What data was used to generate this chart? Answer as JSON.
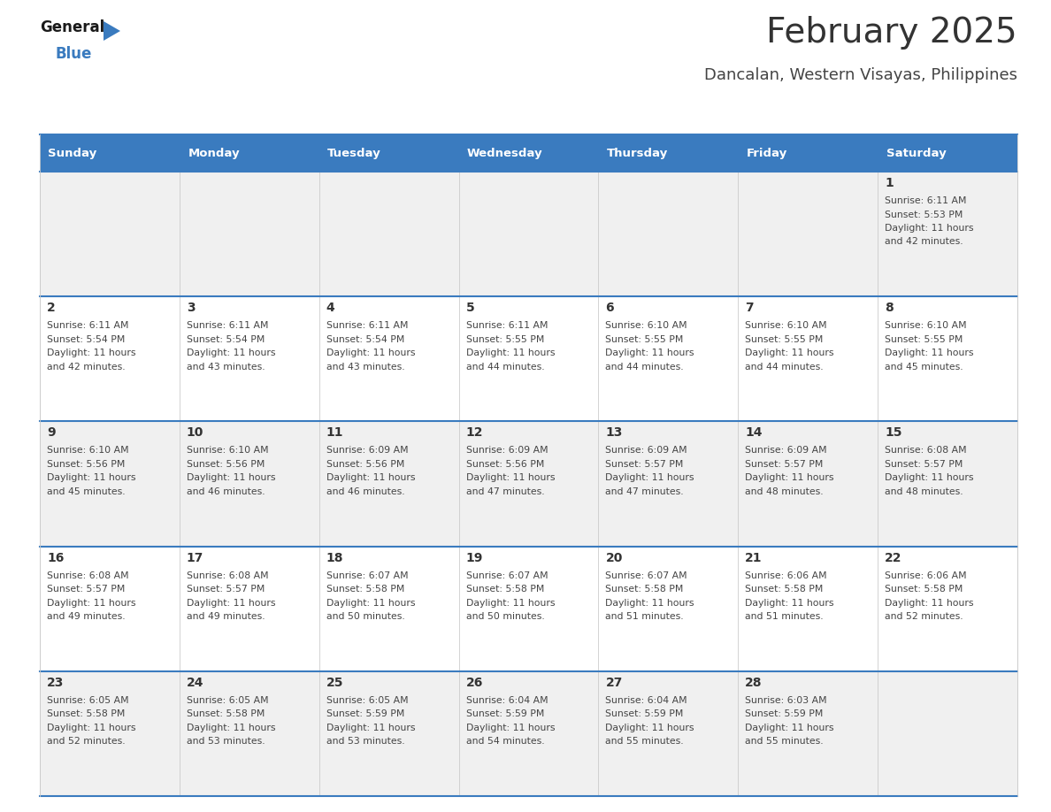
{
  "title": "February 2025",
  "subtitle": "Dancalan, Western Visayas, Philippines",
  "header_bg": "#3a7bbf",
  "header_text": "#ffffff",
  "day_headers": [
    "Sunday",
    "Monday",
    "Tuesday",
    "Wednesday",
    "Thursday",
    "Friday",
    "Saturday"
  ],
  "title_color": "#333333",
  "subtitle_color": "#444444",
  "cell_border_color": "#3a7bbf",
  "cell_bg_row0": "#f0f0f0",
  "cell_bg_row1": "#ffffff",
  "cell_bg_row2": "#f0f0f0",
  "cell_bg_row3": "#ffffff",
  "cell_bg_row4": "#f0f0f0",
  "day_num_color": "#333333",
  "info_color": "#444444",
  "calendar": [
    [
      null,
      null,
      null,
      null,
      null,
      null,
      {
        "day": 1,
        "sunrise": "6:11 AM",
        "sunset": "5:53 PM",
        "daylight": "11 hours and 42 minutes"
      }
    ],
    [
      {
        "day": 2,
        "sunrise": "6:11 AM",
        "sunset": "5:54 PM",
        "daylight": "11 hours and 42 minutes"
      },
      {
        "day": 3,
        "sunrise": "6:11 AM",
        "sunset": "5:54 PM",
        "daylight": "11 hours and 43 minutes"
      },
      {
        "day": 4,
        "sunrise": "6:11 AM",
        "sunset": "5:54 PM",
        "daylight": "11 hours and 43 minutes"
      },
      {
        "day": 5,
        "sunrise": "6:11 AM",
        "sunset": "5:55 PM",
        "daylight": "11 hours and 44 minutes"
      },
      {
        "day": 6,
        "sunrise": "6:10 AM",
        "sunset": "5:55 PM",
        "daylight": "11 hours and 44 minutes"
      },
      {
        "day": 7,
        "sunrise": "6:10 AM",
        "sunset": "5:55 PM",
        "daylight": "11 hours and 44 minutes"
      },
      {
        "day": 8,
        "sunrise": "6:10 AM",
        "sunset": "5:55 PM",
        "daylight": "11 hours and 45 minutes"
      }
    ],
    [
      {
        "day": 9,
        "sunrise": "6:10 AM",
        "sunset": "5:56 PM",
        "daylight": "11 hours and 45 minutes"
      },
      {
        "day": 10,
        "sunrise": "6:10 AM",
        "sunset": "5:56 PM",
        "daylight": "11 hours and 46 minutes"
      },
      {
        "day": 11,
        "sunrise": "6:09 AM",
        "sunset": "5:56 PM",
        "daylight": "11 hours and 46 minutes"
      },
      {
        "day": 12,
        "sunrise": "6:09 AM",
        "sunset": "5:56 PM",
        "daylight": "11 hours and 47 minutes"
      },
      {
        "day": 13,
        "sunrise": "6:09 AM",
        "sunset": "5:57 PM",
        "daylight": "11 hours and 47 minutes"
      },
      {
        "day": 14,
        "sunrise": "6:09 AM",
        "sunset": "5:57 PM",
        "daylight": "11 hours and 48 minutes"
      },
      {
        "day": 15,
        "sunrise": "6:08 AM",
        "sunset": "5:57 PM",
        "daylight": "11 hours and 48 minutes"
      }
    ],
    [
      {
        "day": 16,
        "sunrise": "6:08 AM",
        "sunset": "5:57 PM",
        "daylight": "11 hours and 49 minutes"
      },
      {
        "day": 17,
        "sunrise": "6:08 AM",
        "sunset": "5:57 PM",
        "daylight": "11 hours and 49 minutes"
      },
      {
        "day": 18,
        "sunrise": "6:07 AM",
        "sunset": "5:58 PM",
        "daylight": "11 hours and 50 minutes"
      },
      {
        "day": 19,
        "sunrise": "6:07 AM",
        "sunset": "5:58 PM",
        "daylight": "11 hours and 50 minutes"
      },
      {
        "day": 20,
        "sunrise": "6:07 AM",
        "sunset": "5:58 PM",
        "daylight": "11 hours and 51 minutes"
      },
      {
        "day": 21,
        "sunrise": "6:06 AM",
        "sunset": "5:58 PM",
        "daylight": "11 hours and 51 minutes"
      },
      {
        "day": 22,
        "sunrise": "6:06 AM",
        "sunset": "5:58 PM",
        "daylight": "11 hours and 52 minutes"
      }
    ],
    [
      {
        "day": 23,
        "sunrise": "6:05 AM",
        "sunset": "5:58 PM",
        "daylight": "11 hours and 52 minutes"
      },
      {
        "day": 24,
        "sunrise": "6:05 AM",
        "sunset": "5:58 PM",
        "daylight": "11 hours and 53 minutes"
      },
      {
        "day": 25,
        "sunrise": "6:05 AM",
        "sunset": "5:59 PM",
        "daylight": "11 hours and 53 minutes"
      },
      {
        "day": 26,
        "sunrise": "6:04 AM",
        "sunset": "5:59 PM",
        "daylight": "11 hours and 54 minutes"
      },
      {
        "day": 27,
        "sunrise": "6:04 AM",
        "sunset": "5:59 PM",
        "daylight": "11 hours and 55 minutes"
      },
      {
        "day": 28,
        "sunrise": "6:03 AM",
        "sunset": "5:59 PM",
        "daylight": "11 hours and 55 minutes"
      },
      null
    ]
  ],
  "logo_general_color": "#1a1a1a",
  "logo_blue_color": "#3a7bbf",
  "logo_triangle_color": "#3a7bbf"
}
